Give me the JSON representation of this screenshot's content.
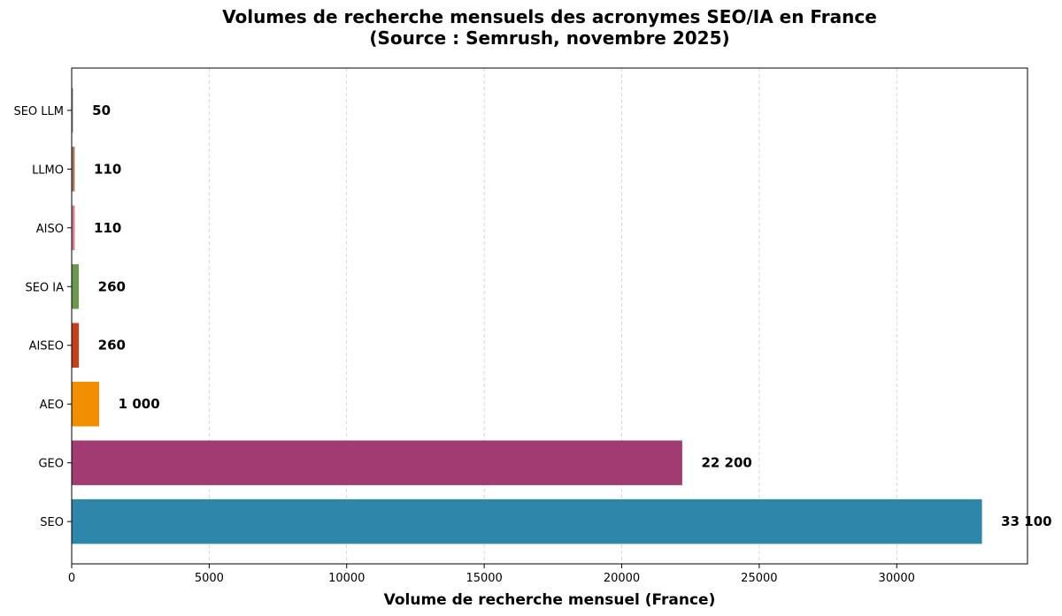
{
  "chart_data": {
    "type": "bar",
    "orientation": "horizontal",
    "title": "Volumes de recherche mensuels des acronymes SEO/IA en France",
    "subtitle": "(Source : Semrush, novembre 2025)",
    "xlabel": "Volume de recherche mensuel (France)",
    "ylabel": "",
    "categories": [
      "SEO",
      "GEO",
      "AEO",
      "AISEO",
      "SEO IA",
      "AISO",
      "LLMO",
      "SEO LLM"
    ],
    "values": [
      33100,
      22200,
      1000,
      260,
      260,
      110,
      110,
      50
    ],
    "data_labels": [
      "33 100",
      "22 200",
      "1 000",
      "260",
      "260",
      "110",
      "110",
      "50"
    ],
    "colors": [
      "#2E86AB",
      "#A23B72",
      "#F18F01",
      "#C73E1D",
      "#6A994E",
      "#E07A8F",
      "#A67B5B",
      "#999999"
    ],
    "xlim": [
      0,
      34755
    ],
    "xticks": [
      0,
      5000,
      10000,
      15000,
      20000,
      25000,
      30000
    ],
    "grid": "x-dashed",
    "legend": "none"
  }
}
